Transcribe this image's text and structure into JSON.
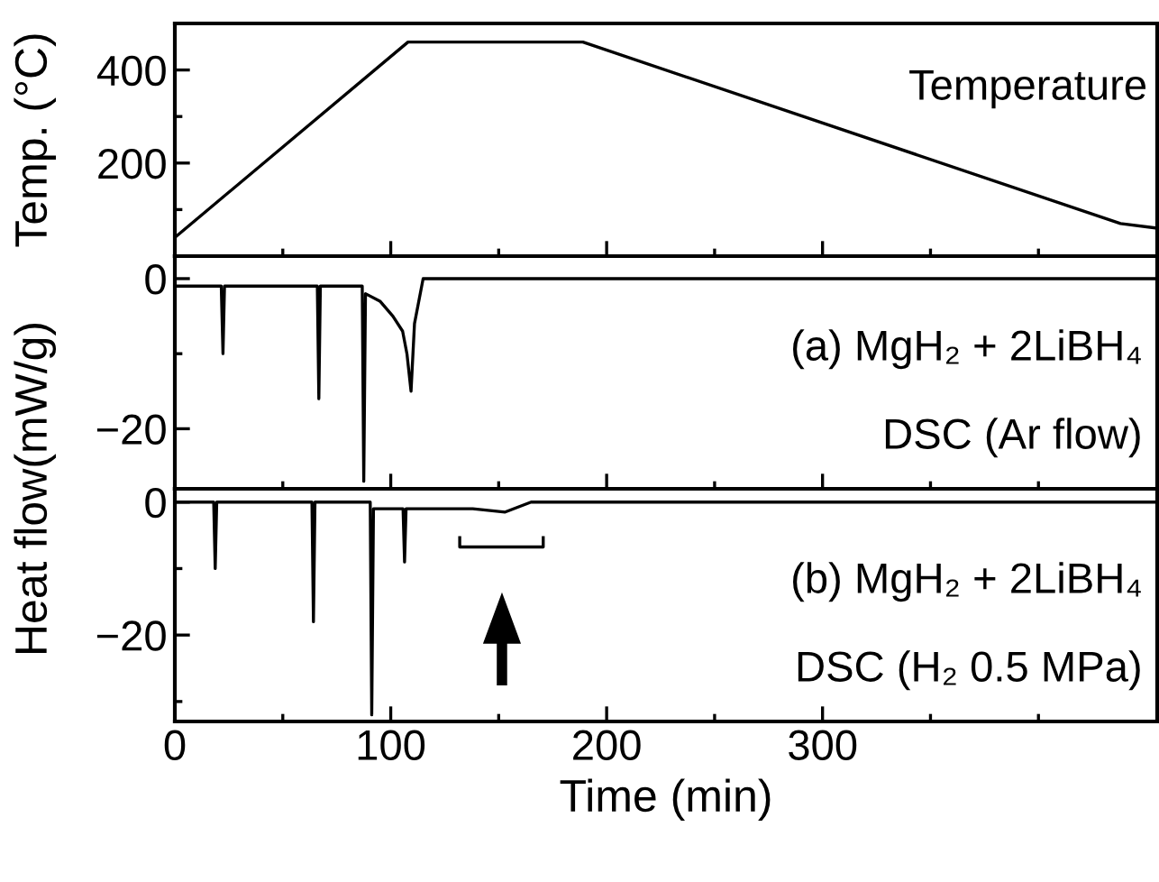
{
  "chart_data": [
    {
      "type": "line",
      "ylabel": "Temp. (°C)",
      "annotations": [
        "Temperature"
      ],
      "xlim": [
        0,
        455
      ],
      "ylim": [
        0,
        500
      ],
      "yticks": [
        {
          "value": 100,
          "label": null
        },
        200,
        {
          "value": 300,
          "label": null
        },
        400
      ],
      "xticks": [
        0,
        {
          "value": 50,
          "label": null
        },
        100,
        {
          "value": 150,
          "label": null
        },
        200,
        {
          "value": 250,
          "label": null
        },
        300,
        {
          "value": 350,
          "label": null
        },
        {
          "value": 400,
          "label": null
        }
      ],
      "tick_labels": "y",
      "grid": false,
      "marker": "none",
      "line_style": "solid",
      "series": [
        {
          "color": "#000000",
          "x": [
            0,
            108,
            189,
            438,
            455
          ],
          "values": [
            40,
            460,
            460,
            70,
            60
          ]
        }
      ]
    },
    {
      "type": "line",
      "ylabel": "Heat flow(mW/g)",
      "annotations": [
        "(a) MgH₂ + 2LiBH₄",
        "DSC (Ar flow)"
      ],
      "xlim": [
        0,
        455
      ],
      "ylim": [
        -28,
        3
      ],
      "yticks": [
        0,
        {
          "value": -10,
          "label": null
        },
        -20
      ],
      "xticks": [
        0,
        {
          "value": 50,
          "label": null
        },
        100,
        {
          "value": 150,
          "label": null
        },
        200,
        {
          "value": 250,
          "label": null
        },
        300,
        {
          "value": 350,
          "label": null
        },
        {
          "value": 400,
          "label": null
        }
      ],
      "tick_labels": "y",
      "grid": false,
      "marker": "none",
      "line_style": "solid",
      "series": [
        {
          "color": "#000000",
          "x": [
            0,
            21.5,
            22.3,
            23,
            66,
            66.7,
            67.4,
            86.8,
            87.5,
            88.3,
            95,
            101,
            105.5,
            107.5,
            109.4,
            111,
            115,
            150,
            195,
            300,
            455
          ],
          "values": [
            -1,
            -1,
            -10,
            -1,
            -1,
            -16,
            -1,
            -1,
            -27,
            -2,
            -3,
            -5,
            -7,
            -10,
            -15,
            -6,
            0,
            0,
            0,
            0,
            0
          ]
        }
      ]
    },
    {
      "type": "line",
      "xlabel": "Time (min)",
      "annotations": [
        "(b) MgH₂ + 2LiBH₄",
        "DSC (H₂ 0.5 MPa)"
      ],
      "xlim": [
        0,
        455
      ],
      "ylim": [
        -33,
        2
      ],
      "yticks": [
        0,
        {
          "value": -10,
          "label": null
        },
        -20,
        {
          "value": -30,
          "label": null
        }
      ],
      "xticks": [
        0,
        {
          "value": 50,
          "label": null
        },
        100,
        {
          "value": 150,
          "label": null
        },
        200,
        {
          "value": 250,
          "label": null
        },
        300,
        {
          "value": 350,
          "label": null
        },
        {
          "value": 400,
          "label": null
        }
      ],
      "grid": false,
      "marker": "none",
      "line_style": "solid",
      "series": [
        {
          "color": "#000000",
          "x": [
            0,
            18,
            18.7,
            19.4,
            63.5,
            64.2,
            64.9,
            90.5,
            91.2,
            92,
            105.7,
            106.4,
            107.1,
            111.5,
            125,
            138,
            153,
            165,
            195,
            300,
            455
          ],
          "values": [
            0,
            0,
            -10,
            0,
            0,
            -18,
            0,
            0,
            -32,
            -1,
            -1,
            -9,
            -1,
            -1,
            -1,
            -1,
            -1.5,
            0,
            0,
            0,
            0
          ]
        }
      ]
    }
  ]
}
